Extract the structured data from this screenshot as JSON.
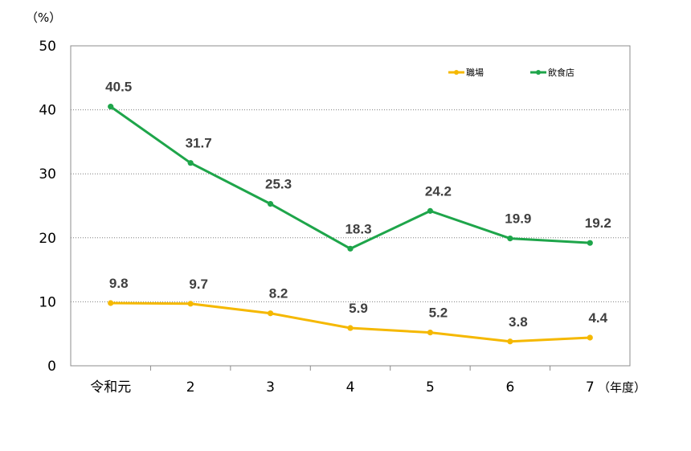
{
  "chart_data": {
    "type": "line",
    "title": "",
    "y_unit_label": "（%）",
    "x_unit_label": "（年度）",
    "categories": [
      "令和元",
      "2",
      "3",
      "4",
      "5",
      "6",
      "7"
    ],
    "ylim": [
      0,
      50
    ],
    "yticks": [
      "0",
      "10",
      "20",
      "30",
      "40",
      "50"
    ],
    "grid": "horizontal-dotted",
    "legend_position": "top-right",
    "series": [
      {
        "name": "職場",
        "color": "#F5B800",
        "values": [
          9.8,
          9.7,
          8.2,
          5.9,
          5.2,
          3.8,
          4.4
        ],
        "labels": [
          "9.8",
          "9.7",
          "8.2",
          "5.9",
          "5.2",
          "3.8",
          "4.4"
        ]
      },
      {
        "name": "飲食店",
        "color": "#1EA54A",
        "values": [
          40.5,
          31.7,
          25.3,
          18.3,
          24.2,
          19.9,
          19.2
        ],
        "labels": [
          "40.5",
          "31.7",
          "25.3",
          "18.3",
          "24.2",
          "19.9",
          "19.2"
        ]
      }
    ]
  }
}
